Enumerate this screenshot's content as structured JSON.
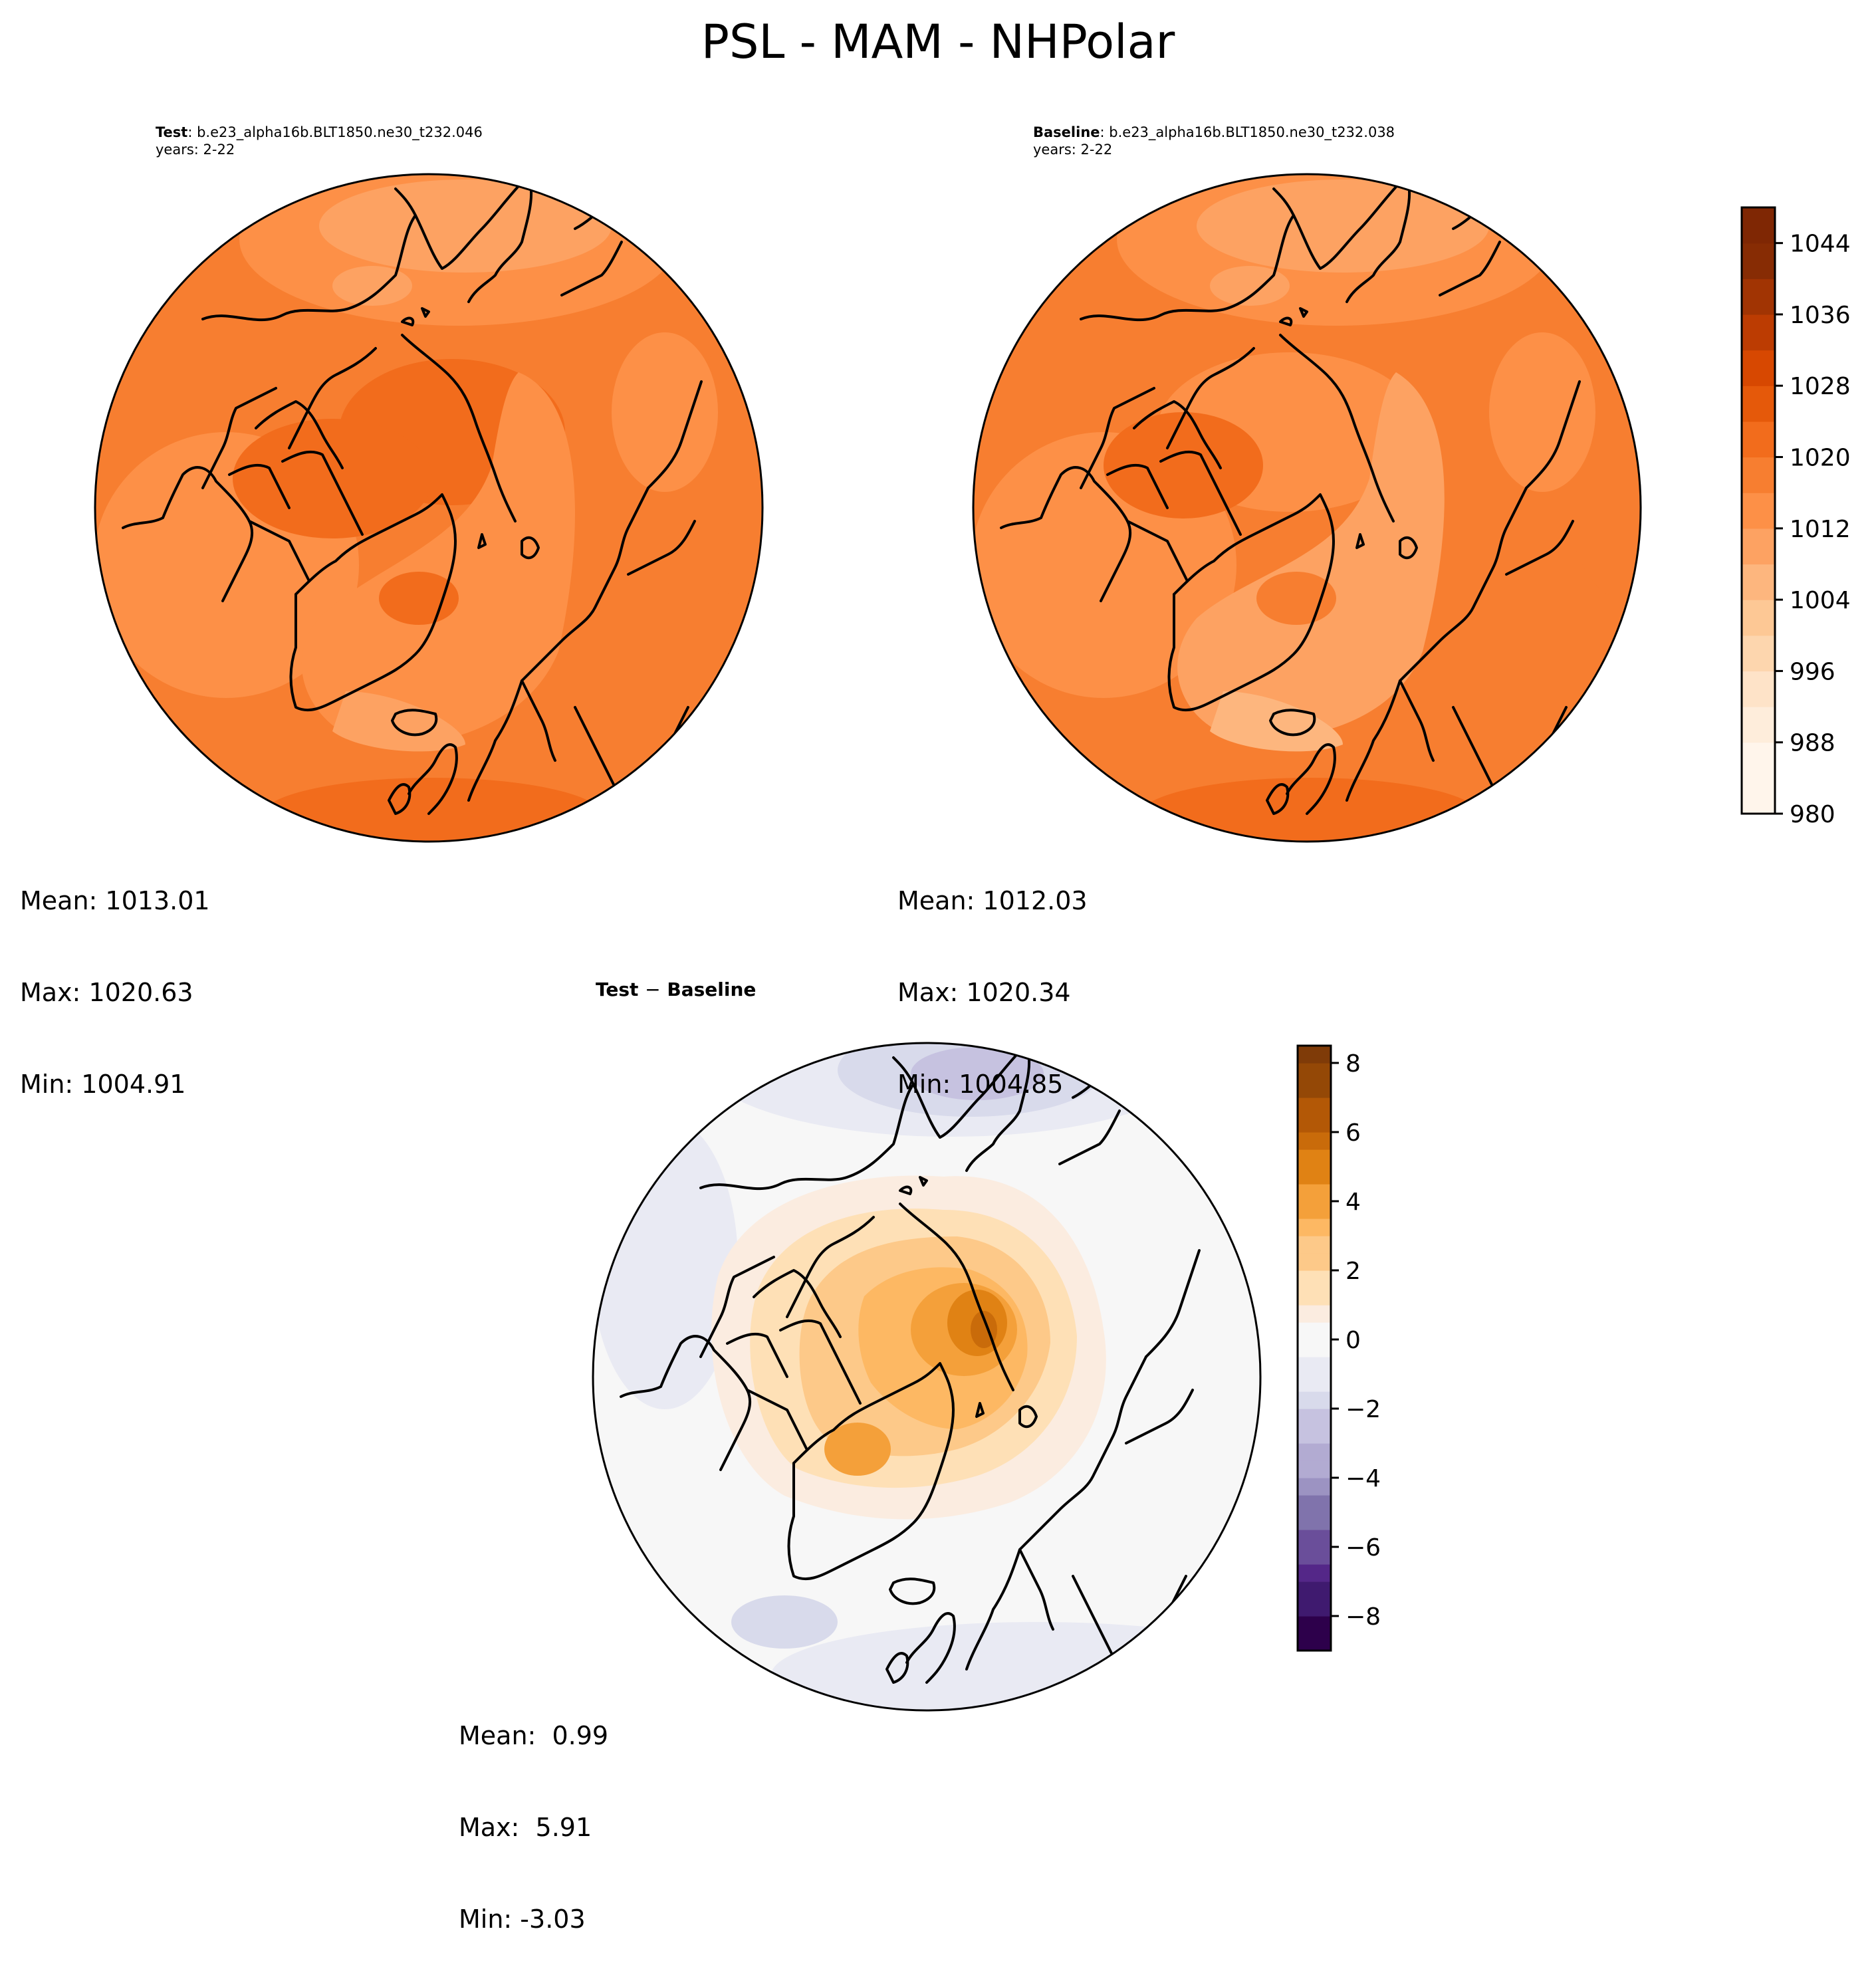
{
  "figure_title": "PSL - MAM - NHPolar",
  "colors": {
    "oranges": [
      "#fff5eb",
      "#feeddb",
      "#fee3c8",
      "#fdd6ae",
      "#fdc895",
      "#fdb67e",
      "#fda262",
      "#fd9047",
      "#f77e30",
      "#f26c1c",
      "#e5590a",
      "#d74801",
      "#bc3c02",
      "#a13403",
      "#872c04",
      "#7f2704"
    ],
    "puor_neg": [
      "#2d004b",
      "#3f1a6f",
      "#542788",
      "#6a4e9a",
      "#8073ac",
      "#9c93c2",
      "#b2abd2",
      "#c6c2e0",
      "#d8daeb",
      "#e9eaf3",
      "#f7f7f7"
    ],
    "puor_pos": [
      "#f7f7f7",
      "#fbece0",
      "#fee0b6",
      "#fdc989",
      "#fdb863",
      "#f4a03a",
      "#e08214",
      "#c96b0a",
      "#b35806",
      "#944806",
      "#7f3b08"
    ]
  },
  "panels": {
    "test": {
      "label_bold": "Test",
      "label_rest": ": b.e23_alpha16b.BLT1850.ne30_t232.046",
      "years": "years: 2-22",
      "stats": [
        "Mean: 1013.01",
        "Max: 1020.63",
        "Min: 1004.91"
      ]
    },
    "baseline": {
      "label_bold": "Baseline",
      "label_rest": ": b.e23_alpha16b.BLT1850.ne30_t232.038",
      "years": "years: 2-22",
      "stats": [
        "Mean: 1012.03",
        "Max: 1020.34",
        "Min: 1004.85"
      ]
    },
    "diff": {
      "label_a": "Test",
      "label_op": "−",
      "label_b": "Baseline",
      "stats": [
        "Mean:  0.99",
        "Max:  5.91",
        "Min: -3.03"
      ]
    }
  },
  "chart_data": [
    {
      "type": "heatmap",
      "name": "test",
      "projection": "north-polar-stereographic",
      "value_stats": {
        "mean": 1013.01,
        "max": 1020.63,
        "min": 1004.91
      },
      "colorscale": "Oranges",
      "colorbar_shared_with": "baseline"
    },
    {
      "type": "heatmap",
      "name": "baseline",
      "projection": "north-polar-stereographic",
      "value_stats": {
        "mean": 1012.03,
        "max": 1020.34,
        "min": 1004.85
      },
      "colorscale": "Oranges",
      "colorbar": {
        "range": [
          980,
          1048
        ],
        "ticks": [
          980,
          988,
          996,
          1004,
          1012,
          1020,
          1028,
          1036,
          1044
        ],
        "tick_labels": [
          "980",
          "988",
          "996",
          "1004",
          "1012",
          "1020",
          "1028",
          "1036",
          "1044"
        ],
        "placement": "right"
      }
    },
    {
      "type": "heatmap",
      "name": "difference",
      "projection": "north-polar-stereographic",
      "value_stats": {
        "mean": 0.99,
        "max": 5.91,
        "min": -3.03
      },
      "colorscale": "PuOr_r",
      "colorbar": {
        "range": [
          -9,
          8.5
        ],
        "ticks": [
          -8,
          -6,
          -4,
          -2,
          0,
          2,
          4,
          6,
          8
        ],
        "tick_labels": [
          "−8",
          "−6",
          "−4",
          "−2",
          "0",
          "2",
          "4",
          "6",
          "8"
        ],
        "placement": "right"
      }
    }
  ]
}
